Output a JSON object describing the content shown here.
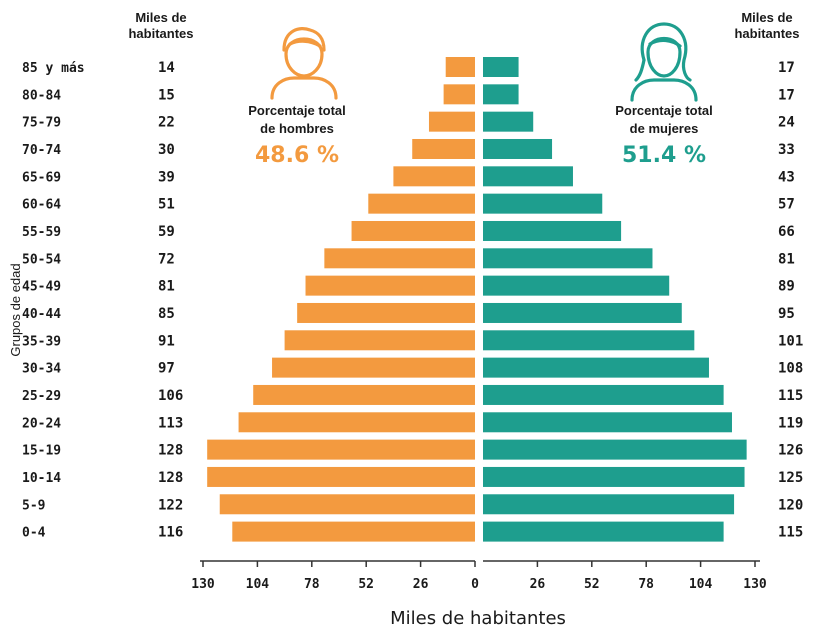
{
  "colors": {
    "male": "#F39A3F",
    "female": "#1E9E8E"
  },
  "icons": {
    "male": "man-icon",
    "female": "woman-icon"
  },
  "header_left": [
    "Miles de",
    "habitantes"
  ],
  "header_right": [
    "Miles de",
    "habitantes"
  ],
  "male_total": {
    "label": [
      "Porcentaje total",
      "de hombres"
    ],
    "value": "48.6 %"
  },
  "female_total": {
    "label": [
      "Porcentaje total",
      "de mujeres"
    ],
    "value": "51.4 %"
  },
  "chart_data": {
    "type": "bar",
    "orientation": "horizontal",
    "ylabel": "Grupos de edad",
    "xlabel": "Miles de habitantes",
    "xlim": [
      0,
      130
    ],
    "xticks_left": [
      "130",
      "104",
      "78",
      "52",
      "26",
      "0"
    ],
    "xticks_right": [
      "26",
      "52",
      "78",
      "104",
      "130"
    ],
    "categories": [
      "85 y más",
      "80-84",
      "75-79",
      "70-74",
      "65-69",
      "60-64",
      "55-59",
      "50-54",
      "45-49",
      "40-44",
      "35-39",
      "30-34",
      "25-29",
      "20-24",
      "15-19",
      "10-14",
      "5-9",
      "0-4"
    ],
    "series": [
      {
        "values": [
          14,
          15,
          22,
          30,
          39,
          51,
          59,
          72,
          81,
          85,
          91,
          97,
          106,
          113,
          128,
          128,
          122,
          116
        ]
      },
      {
        "values": [
          17,
          17,
          24,
          33,
          43,
          57,
          66,
          81,
          89,
          95,
          101,
          108,
          115,
          119,
          126,
          125,
          120,
          115
        ]
      }
    ],
    "grid": false,
    "legend": "none"
  }
}
